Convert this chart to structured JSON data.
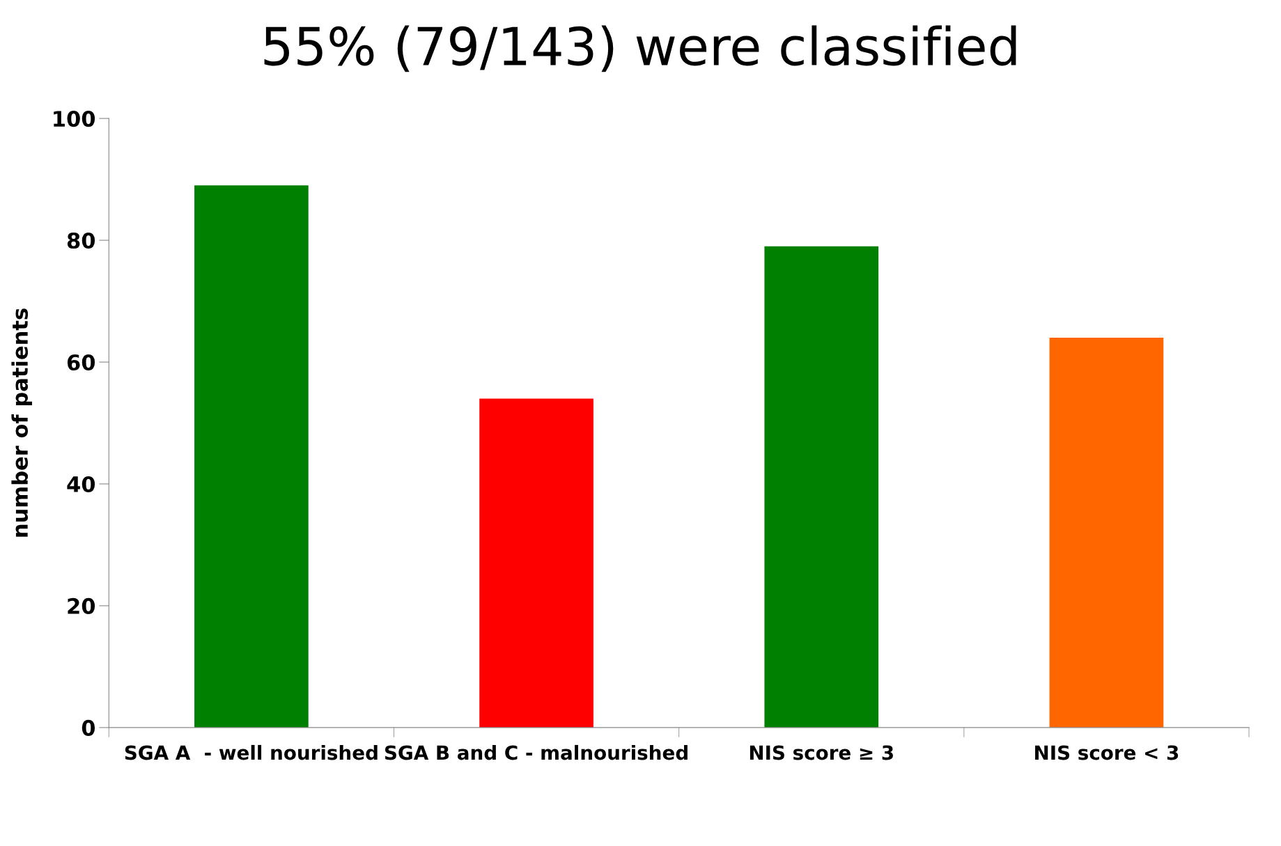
{
  "chart_data": {
    "type": "bar",
    "title": "55% (79/143) were classified",
    "categories": [
      "SGA A  - well nourished",
      "SGA B and C - malnourished",
      "NIS score ≥ 3",
      "NIS score < 3"
    ],
    "values": [
      89,
      54,
      79,
      64
    ],
    "colors": [
      "#008000",
      "#ff0000",
      "#008000",
      "#ff6600"
    ],
    "ylabel": "number of patients",
    "ylim": [
      0,
      100
    ],
    "yticks": [
      0,
      20,
      40,
      60,
      80,
      100
    ],
    "grid": false,
    "legend": false
  }
}
